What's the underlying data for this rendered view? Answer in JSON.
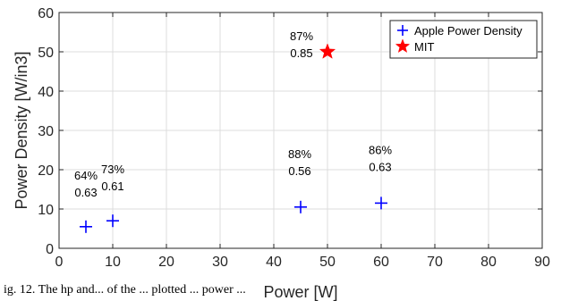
{
  "chart_data": {
    "type": "scatter",
    "xlabel": "Power [W]",
    "ylabel": "Power Density [W/in3]",
    "xlim": [
      0,
      90
    ],
    "ylim": [
      0,
      60
    ],
    "xticks": [
      "0",
      "10",
      "20",
      "30",
      "40",
      "50",
      "60",
      "70",
      "80",
      "90"
    ],
    "yticks": [
      "0",
      "10",
      "20",
      "30",
      "40",
      "50",
      "60"
    ],
    "grid": true,
    "legend_position": "top-right",
    "colors": {
      "apple": "#0000ff",
      "mit": "#ff0000"
    },
    "series": [
      {
        "name": "Apple Power Density",
        "marker": "plus",
        "points": [
          {
            "x": 5,
            "y": 5.5,
            "labels": [
              "64%",
              "0.63"
            ]
          },
          {
            "x": 10,
            "y": 7,
            "labels": [
              "73%",
              "0.61"
            ]
          },
          {
            "x": 45,
            "y": 10.5,
            "labels": [
              "88%",
              "0.56"
            ]
          },
          {
            "x": 60,
            "y": 11.5,
            "labels": [
              "86%",
              "0.63"
            ]
          }
        ]
      },
      {
        "name": "MIT",
        "marker": "star",
        "points": [
          {
            "x": 50,
            "y": 50,
            "labels": [
              "87%",
              "0.85"
            ]
          }
        ]
      }
    ]
  },
  "caption": "ig. 12.   The hp and... of the ... plotted ... power ..."
}
